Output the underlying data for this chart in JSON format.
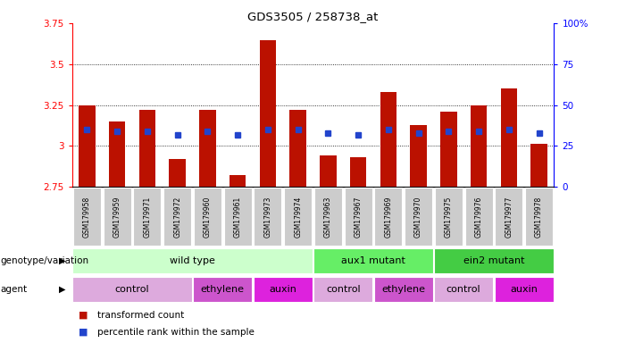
{
  "title": "GDS3505 / 258738_at",
  "samples": [
    "GSM179958",
    "GSM179959",
    "GSM179971",
    "GSM179972",
    "GSM179960",
    "GSM179961",
    "GSM179973",
    "GSM179974",
    "GSM179963",
    "GSM179967",
    "GSM179969",
    "GSM179970",
    "GSM179975",
    "GSM179976",
    "GSM179977",
    "GSM179978"
  ],
  "bar_values": [
    3.25,
    3.15,
    3.22,
    2.92,
    3.22,
    2.82,
    3.65,
    3.22,
    2.94,
    2.93,
    3.33,
    3.13,
    3.21,
    3.25,
    3.35,
    3.01
  ],
  "blue_values": [
    3.1,
    3.09,
    3.09,
    3.07,
    3.09,
    3.07,
    3.1,
    3.1,
    3.08,
    3.07,
    3.1,
    3.08,
    3.09,
    3.09,
    3.1,
    3.08
  ],
  "bar_bottom": 2.75,
  "ylim_left": [
    2.75,
    3.75
  ],
  "ylim_right": [
    0,
    100
  ],
  "yticks_left": [
    2.75,
    3.0,
    3.25,
    3.5,
    3.75
  ],
  "yticks_right": [
    0,
    25,
    50,
    75,
    100
  ],
  "ytick_labels_left": [
    "2.75",
    "3",
    "3.25",
    "3.5",
    "3.75"
  ],
  "ytick_labels_right": [
    "0",
    "25",
    "50",
    "75",
    "100%"
  ],
  "bar_color": "#bb1100",
  "blue_color": "#2244cc",
  "genotype_groups": [
    {
      "label": "wild type",
      "start": 0,
      "end": 8,
      "color": "#ccffcc"
    },
    {
      "label": "aux1 mutant",
      "start": 8,
      "end": 12,
      "color": "#66ee66"
    },
    {
      "label": "ein2 mutant",
      "start": 12,
      "end": 16,
      "color": "#44cc44"
    }
  ],
  "agent_groups": [
    {
      "label": "control",
      "start": 0,
      "end": 4,
      "color": "#ddaadd"
    },
    {
      "label": "ethylene",
      "start": 4,
      "end": 6,
      "color": "#cc55cc"
    },
    {
      "label": "auxin",
      "start": 6,
      "end": 8,
      "color": "#dd22dd"
    },
    {
      "label": "control",
      "start": 8,
      "end": 10,
      "color": "#ddaadd"
    },
    {
      "label": "ethylene",
      "start": 10,
      "end": 12,
      "color": "#cc55cc"
    },
    {
      "label": "control",
      "start": 12,
      "end": 14,
      "color": "#ddaadd"
    },
    {
      "label": "auxin",
      "start": 14,
      "end": 16,
      "color": "#dd22dd"
    }
  ],
  "legend_red": "transformed count",
  "legend_blue": "percentile rank within the sample",
  "grid_dotted_values": [
    3.0,
    3.25,
    3.5
  ],
  "row_label_genotype": "genotype/variation",
  "row_label_agent": "agent",
  "xtick_bg_color": "#cccccc",
  "n_samples": 16
}
